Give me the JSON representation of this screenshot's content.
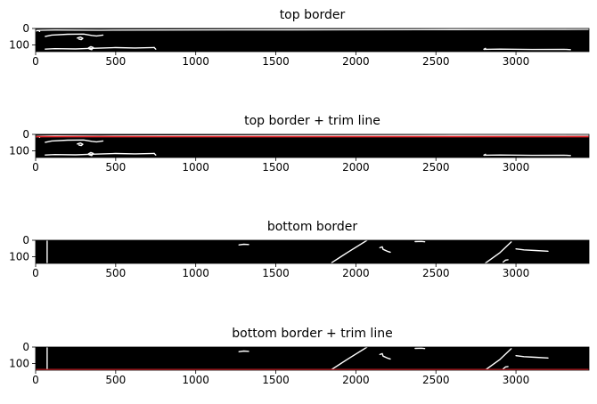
{
  "colors": {
    "background": "#ffffff",
    "image_bg": "#000000",
    "edges": "#ffffff",
    "trim_line": "#e8262b",
    "axis": "#000000"
  },
  "chart_data": [
    {
      "type": "image",
      "title": "top border",
      "xlim": [
        0,
        3456
      ],
      "ylim": [
        140,
        0
      ],
      "xticks": [
        0,
        500,
        1000,
        1500,
        2000,
        2500,
        3000
      ],
      "yticks": [
        0,
        100
      ],
      "trim_line": null,
      "edges": [
        [
          [
            0,
            12
          ],
          [
            40,
            10
          ],
          [
            120,
            9
          ],
          [
            400,
            10
          ],
          [
            800,
            9
          ],
          [
            1600,
            8
          ],
          [
            2400,
            7
          ],
          [
            3200,
            6
          ],
          [
            3456,
            5
          ]
        ],
        [
          [
            5,
            15
          ],
          [
            10,
            12
          ],
          [
            20,
            14
          ],
          [
            25,
            18
          ]
        ],
        [
          [
            60,
            48
          ],
          [
            100,
            40
          ],
          [
            200,
            35
          ],
          [
            300,
            34
          ],
          [
            350,
            42
          ],
          [
            380,
            45
          ],
          [
            420,
            40
          ]
        ],
        [
          [
            260,
            58
          ],
          [
            280,
            52
          ],
          [
            295,
            60
          ],
          [
            285,
            68
          ],
          [
            270,
            64
          ]
        ],
        [
          [
            60,
            125
          ],
          [
            120,
            122
          ],
          [
            250,
            124
          ],
          [
            350,
            120
          ],
          [
            500,
            116
          ],
          [
            620,
            118
          ],
          [
            740,
            115
          ]
        ],
        [
          [
            740,
            115
          ],
          [
            750,
            125
          ]
        ],
        [
          [
            330,
            118
          ],
          [
            345,
            110
          ],
          [
            360,
            115
          ],
          [
            350,
            128
          ],
          [
            335,
            124
          ],
          [
            330,
            118
          ]
        ],
        [
          [
            2800,
            126
          ],
          [
            2900,
            125
          ],
          [
            3100,
            127
          ],
          [
            3300,
            126
          ],
          [
            3340,
            128
          ]
        ],
        [
          [
            2800,
            126
          ],
          [
            2810,
            120
          ]
        ]
      ]
    },
    {
      "type": "image",
      "title": "top border + trim line",
      "xlim": [
        0,
        3456
      ],
      "ylim": [
        140,
        0
      ],
      "xticks": [
        0,
        500,
        1000,
        1500,
        2000,
        2500,
        3000
      ],
      "yticks": [
        0,
        100
      ],
      "trim_line": 14,
      "edges": [
        [
          [
            0,
            12
          ],
          [
            40,
            10
          ],
          [
            120,
            9
          ],
          [
            400,
            10
          ],
          [
            800,
            9
          ],
          [
            1600,
            8
          ],
          [
            2400,
            7
          ],
          [
            3200,
            6
          ],
          [
            3456,
            5
          ]
        ],
        [
          [
            5,
            15
          ],
          [
            10,
            12
          ],
          [
            20,
            14
          ],
          [
            25,
            18
          ]
        ],
        [
          [
            60,
            48
          ],
          [
            100,
            40
          ],
          [
            200,
            35
          ],
          [
            300,
            34
          ],
          [
            350,
            42
          ],
          [
            380,
            45
          ],
          [
            420,
            40
          ]
        ],
        [
          [
            260,
            58
          ],
          [
            280,
            52
          ],
          [
            295,
            60
          ],
          [
            285,
            68
          ],
          [
            270,
            64
          ]
        ],
        [
          [
            60,
            125
          ],
          [
            120,
            122
          ],
          [
            250,
            124
          ],
          [
            350,
            120
          ],
          [
            500,
            116
          ],
          [
            620,
            118
          ],
          [
            740,
            115
          ]
        ],
        [
          [
            740,
            115
          ],
          [
            750,
            125
          ]
        ],
        [
          [
            330,
            118
          ],
          [
            345,
            110
          ],
          [
            360,
            115
          ],
          [
            350,
            128
          ],
          [
            335,
            124
          ],
          [
            330,
            118
          ]
        ],
        [
          [
            2800,
            126
          ],
          [
            2900,
            125
          ],
          [
            3100,
            127
          ],
          [
            3300,
            126
          ],
          [
            3340,
            128
          ]
        ],
        [
          [
            2800,
            126
          ],
          [
            2810,
            120
          ]
        ]
      ]
    },
    {
      "type": "image",
      "title": "bottom border",
      "xlim": [
        0,
        3456
      ],
      "ylim": [
        140,
        0
      ],
      "xticks": [
        0,
        500,
        1000,
        1500,
        2000,
        2500,
        3000
      ],
      "yticks": [
        0,
        100
      ],
      "trim_line": null,
      "edges": [
        [
          [
            72,
            0
          ],
          [
            72,
            140
          ]
        ],
        [
          [
            1270,
            28
          ],
          [
            1300,
            24
          ],
          [
            1330,
            26
          ]
        ],
        [
          [
            1850,
            135
          ],
          [
            1950,
            72
          ],
          [
            2070,
            0
          ]
        ],
        [
          [
            2150,
            45
          ],
          [
            2165,
            40
          ],
          [
            2170,
            55
          ],
          [
            2200,
            68
          ],
          [
            2215,
            72
          ]
        ],
        [
          [
            2370,
            8
          ],
          [
            2410,
            7
          ],
          [
            2430,
            9
          ]
        ],
        [
          [
            2810,
            138
          ],
          [
            2900,
            75
          ],
          [
            2970,
            10
          ]
        ],
        [
          [
            2920,
            132
          ],
          [
            2935,
            120
          ],
          [
            2950,
            118
          ]
        ],
        [
          [
            3000,
            52
          ],
          [
            3050,
            58
          ],
          [
            3120,
            62
          ],
          [
            3200,
            66
          ]
        ]
      ]
    },
    {
      "type": "image",
      "title": "bottom border + trim line",
      "xlim": [
        0,
        3456
      ],
      "ylim": [
        140,
        0
      ],
      "xticks": [
        0,
        500,
        1000,
        1500,
        2000,
        2500,
        3000
      ],
      "yticks": [
        0,
        100
      ],
      "trim_line": 137,
      "edges": [
        [
          [
            72,
            0
          ],
          [
            72,
            140
          ]
        ],
        [
          [
            1270,
            28
          ],
          [
            1300,
            24
          ],
          [
            1330,
            26
          ]
        ],
        [
          [
            1850,
            135
          ],
          [
            1950,
            72
          ],
          [
            2070,
            0
          ]
        ],
        [
          [
            2150,
            45
          ],
          [
            2165,
            40
          ],
          [
            2170,
            55
          ],
          [
            2200,
            68
          ],
          [
            2215,
            72
          ]
        ],
        [
          [
            2370,
            8
          ],
          [
            2410,
            7
          ],
          [
            2430,
            9
          ]
        ],
        [
          [
            2810,
            138
          ],
          [
            2900,
            75
          ],
          [
            2970,
            10
          ]
        ],
        [
          [
            2920,
            132
          ],
          [
            2935,
            120
          ],
          [
            2950,
            118
          ]
        ],
        [
          [
            3000,
            52
          ],
          [
            3050,
            58
          ],
          [
            3120,
            62
          ],
          [
            3200,
            66
          ]
        ]
      ]
    }
  ]
}
